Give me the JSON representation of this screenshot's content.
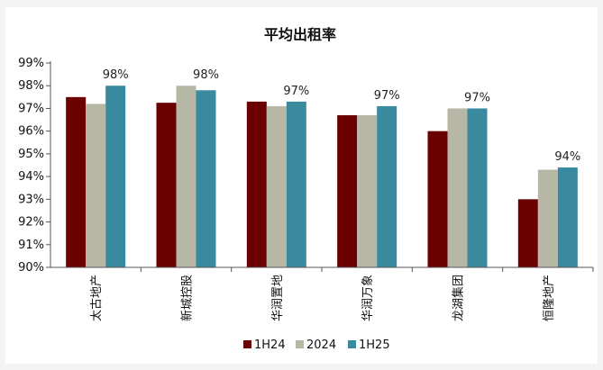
{
  "chart_data": {
    "type": "bar",
    "title": "平均出租率",
    "categories": [
      "太古地产",
      "新城控股",
      "华润置地",
      "华润万象",
      "龙湖集团",
      "恒隆地产"
    ],
    "series": [
      {
        "name": "1H24",
        "values": [
          97.5,
          97.25,
          97.3,
          96.7,
          96.0,
          93.0
        ],
        "color": "#6b0000"
      },
      {
        "name": "2024",
        "values": [
          97.2,
          98.0,
          97.1,
          96.7,
          97.0,
          94.3
        ],
        "color": "#b7b7a6"
      },
      {
        "name": "1H25",
        "values": [
          98.0,
          97.8,
          97.3,
          97.1,
          97.0,
          94.4
        ],
        "color": "#3a8a9f"
      }
    ],
    "data_labels": [
      "98%",
      "98%",
      "97%",
      "97%",
      "97%",
      "94%"
    ],
    "y_ticks": [
      "90%",
      "91%",
      "92%",
      "93%",
      "94%",
      "95%",
      "96%",
      "97%",
      "98%",
      "99%"
    ],
    "ylim": [
      90,
      99
    ],
    "xlabel": "",
    "ylabel": "",
    "grid": false,
    "legend": "bottom-center"
  }
}
